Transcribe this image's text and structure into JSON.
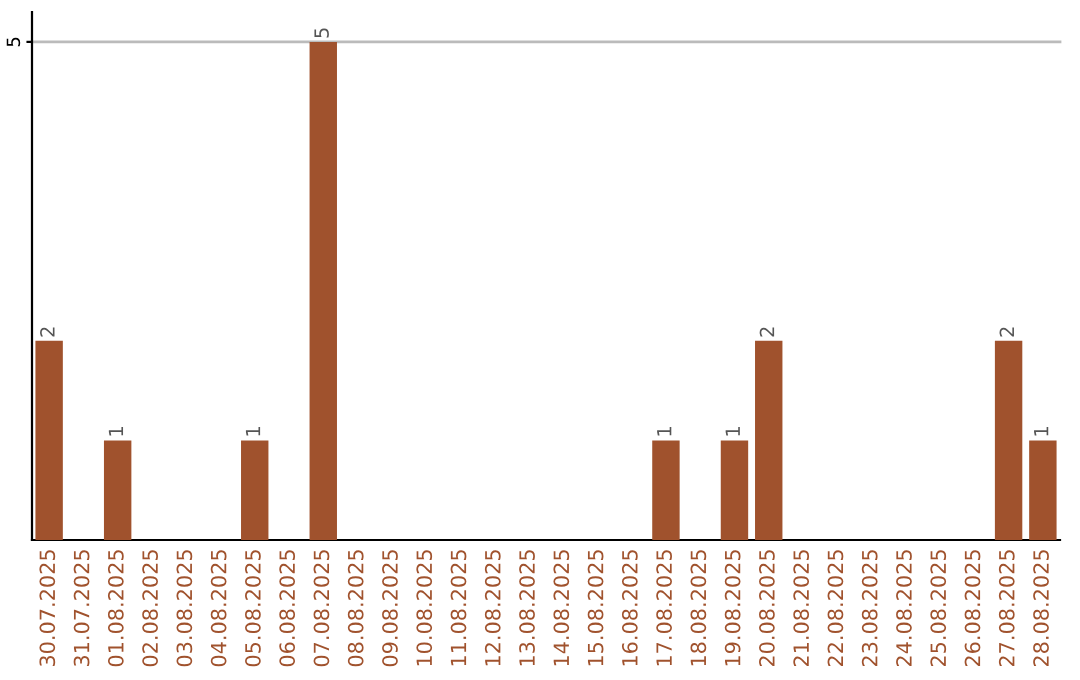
{
  "chart_data": {
    "type": "bar",
    "categories": [
      "30.07.2025",
      "31.07.2025",
      "01.08.2025",
      "02.08.2025",
      "03.08.2025",
      "04.08.2025",
      "05.08.2025",
      "06.08.2025",
      "07.08.2025",
      "08.08.2025",
      "09.08.2025",
      "10.08.2025",
      "11.08.2025",
      "12.08.2025",
      "13.08.2025",
      "14.08.2025",
      "15.08.2025",
      "16.08.2025",
      "17.08.2025",
      "18.08.2025",
      "19.08.2025",
      "20.08.2025",
      "21.08.2025",
      "22.08.2025",
      "23.08.2025",
      "24.08.2025",
      "25.08.2025",
      "26.08.2025",
      "27.08.2025",
      "28.08.2025"
    ],
    "values": [
      2,
      0,
      1,
      0,
      0,
      0,
      1,
      0,
      5,
      0,
      0,
      0,
      0,
      0,
      0,
      0,
      0,
      0,
      1,
      0,
      1,
      2,
      0,
      0,
      0,
      0,
      0,
      0,
      2,
      1
    ],
    "value_labels": [
      "2",
      null,
      "1",
      null,
      null,
      null,
      "1",
      null,
      "5",
      null,
      null,
      null,
      null,
      null,
      null,
      null,
      null,
      null,
      "1",
      null,
      "1",
      "2",
      null,
      null,
      null,
      null,
      null,
      null,
      "2",
      "1"
    ],
    "color": "#a0522d",
    "ylim": [
      0,
      5.3
    ],
    "yticks": [
      5
    ],
    "grid": "y",
    "legend": false
  }
}
